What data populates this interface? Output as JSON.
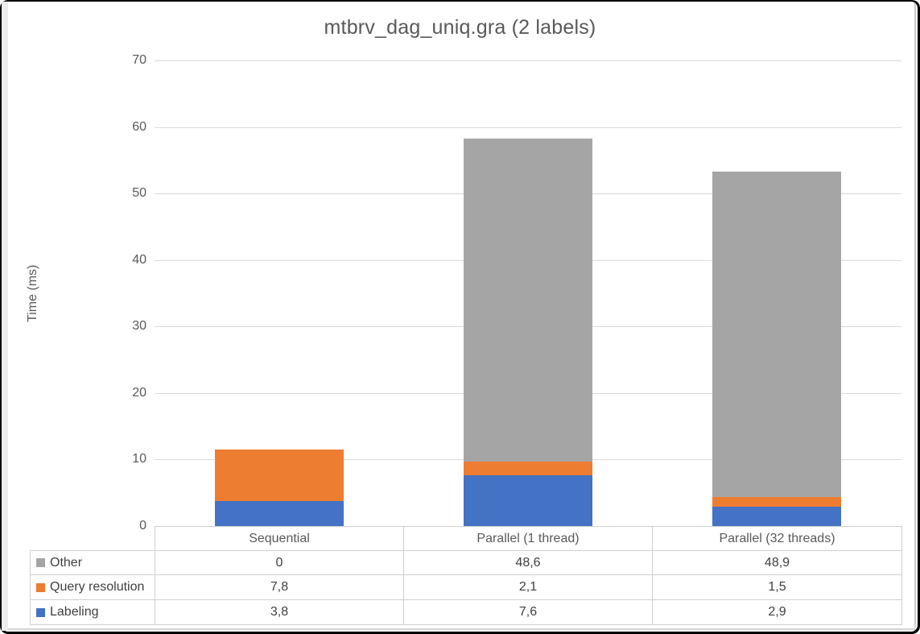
{
  "chart_data": {
    "type": "stacked-bar",
    "title": "mtbrv_dag_uniq.gra (2 labels)",
    "ylabel": "Time (ms)",
    "xlabel": "",
    "categories": [
      "Sequential",
      "Parallel (1 thread)",
      "Parallel (32 threads)"
    ],
    "series": [
      {
        "name": "Labeling",
        "color": "#4472C4",
        "values": [
          3.8,
          7.6,
          2.9
        ],
        "labels": [
          "3,8",
          "7,6",
          "2,9"
        ]
      },
      {
        "name": "Query resolution",
        "color": "#ED7D31",
        "values": [
          7.8,
          2.1,
          1.5
        ],
        "labels": [
          "7,8",
          "2,1",
          "1,5"
        ]
      },
      {
        "name": "Other",
        "color": "#A5A5A5",
        "values": [
          0,
          48.6,
          48.9
        ],
        "labels": [
          "0",
          "48,6",
          "48,9"
        ]
      }
    ],
    "stack_order_bottom_to_top": [
      "Labeling",
      "Query resolution",
      "Other"
    ],
    "table_row_order_top_to_bottom": [
      "Other",
      "Query resolution",
      "Labeling"
    ],
    "ylim": [
      0,
      70
    ],
    "ytick_step": 10,
    "ytick_labels": [
      "0",
      "10",
      "20",
      "30",
      "40",
      "50",
      "60",
      "70"
    ],
    "grid": true,
    "legend_position": "table-left",
    "colors": {
      "title_text": "#595959",
      "axis_text": "#595959",
      "gridline": "#D9D9D9",
      "table_border": "#D0D0D0",
      "table_text": "#3F3F3F"
    }
  }
}
